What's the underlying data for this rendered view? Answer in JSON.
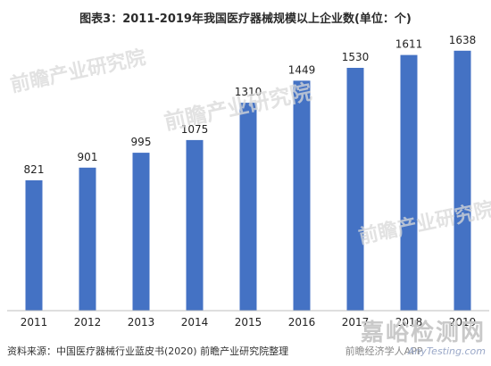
{
  "chart_data": {
    "type": "bar",
    "title": "图表3：2011-2019年我国医疗器械规模以上企业数(单位：个)",
    "categories": [
      "2011",
      "2012",
      "2013",
      "2014",
      "2015",
      "2016",
      "2017",
      "2018",
      "2019"
    ],
    "values": [
      821,
      901,
      995,
      1075,
      1310,
      1449,
      1530,
      1611,
      1638
    ],
    "xlabel": "",
    "ylabel": "",
    "ylim": [
      0,
      1800
    ],
    "grid": false,
    "legend": "none",
    "bar_color": "#4472c4",
    "data_labels": true
  },
  "footer": {
    "source": "资料来源：中国医疗器械行业蓝皮书(2020) 前瞻产业研究院整理"
  },
  "watermarks": {
    "brand": "前瞻产业研究院",
    "site_main": "嘉峪检测网",
    "site_sub": "AnyTesting.com",
    "app_text": "前瞻经济学人APP"
  }
}
